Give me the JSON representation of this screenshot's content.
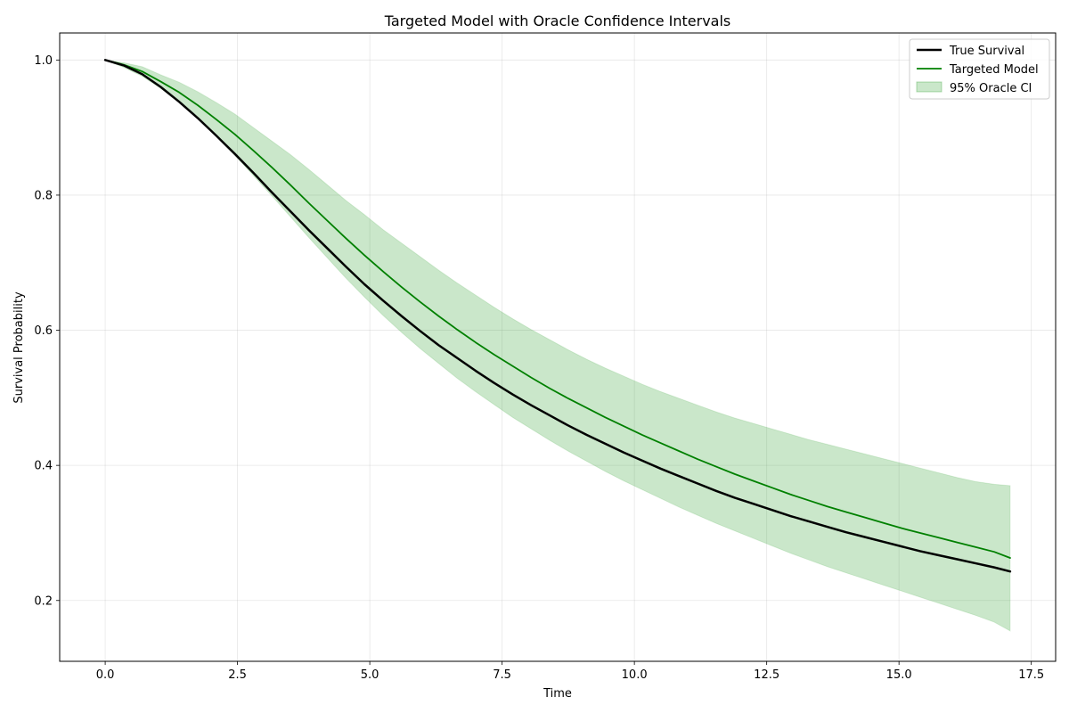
{
  "chart_data": {
    "type": "line",
    "title": "Targeted Model with Oracle Confidence Intervals",
    "xlabel": "Time",
    "ylabel": "Survival Probability",
    "xlim": [
      -0.86,
      17.96
    ],
    "ylim": [
      0.11,
      1.04
    ],
    "xticks": [
      0.0,
      2.5,
      5.0,
      7.5,
      10.0,
      12.5,
      15.0,
      17.5
    ],
    "xtick_labels": [
      "0.0",
      "2.5",
      "5.0",
      "7.5",
      "10.0",
      "12.5",
      "15.0",
      "17.5"
    ],
    "yticks": [
      0.2,
      0.4,
      0.6,
      0.8,
      1.0
    ],
    "ytick_labels": [
      "0.2",
      "0.4",
      "0.6",
      "0.8",
      "1.0"
    ],
    "grid": true,
    "legend_position": "top-right",
    "x": [
      0,
      0.35,
      0.7,
      1.05,
      1.4,
      1.75,
      2.1,
      2.45,
      2.8,
      3.15,
      3.5,
      3.85,
      4.2,
      4.55,
      4.9,
      5.25,
      5.6,
      5.95,
      6.3,
      6.65,
      7.0,
      7.35,
      7.7,
      8.05,
      8.4,
      8.75,
      9.1,
      9.45,
      9.8,
      10.15,
      10.5,
      10.85,
      11.2,
      11.55,
      11.9,
      12.25,
      12.6,
      12.95,
      13.3,
      13.65,
      14.0,
      14.35,
      14.7,
      15.05,
      15.4,
      15.75,
      16.1,
      16.45,
      16.8,
      17.1
    ],
    "series": [
      {
        "name": "True Survival",
        "color": "#000000",
        "line_width": 2.5,
        "values": [
          1.0,
          0.992,
          0.979,
          0.96,
          0.938,
          0.914,
          0.888,
          0.861,
          0.833,
          0.804,
          0.776,
          0.748,
          0.721,
          0.694,
          0.668,
          0.644,
          0.621,
          0.599,
          0.578,
          0.559,
          0.54,
          0.522,
          0.505,
          0.489,
          0.474,
          0.459,
          0.445,
          0.432,
          0.419,
          0.407,
          0.395,
          0.384,
          0.373,
          0.362,
          0.352,
          0.343,
          0.334,
          0.325,
          0.317,
          0.309,
          0.301,
          0.294,
          0.287,
          0.28,
          0.273,
          0.267,
          0.261,
          0.255,
          0.249,
          0.243
        ]
      },
      {
        "name": "Targeted Model",
        "color": "#008000",
        "line_width": 1.8,
        "values": [
          1.0,
          0.993,
          0.983,
          0.968,
          0.952,
          0.933,
          0.912,
          0.89,
          0.866,
          0.841,
          0.815,
          0.788,
          0.762,
          0.736,
          0.711,
          0.687,
          0.664,
          0.642,
          0.621,
          0.601,
          0.582,
          0.564,
          0.547,
          0.53,
          0.514,
          0.499,
          0.485,
          0.471,
          0.458,
          0.445,
          0.433,
          0.421,
          0.409,
          0.398,
          0.387,
          0.377,
          0.367,
          0.357,
          0.348,
          0.339,
          0.331,
          0.323,
          0.315,
          0.307,
          0.3,
          0.293,
          0.286,
          0.279,
          0.272,
          0.263
        ]
      }
    ],
    "band": {
      "name": "95% Oracle CI",
      "color": "#2ca02c",
      "opacity": 0.25,
      "lower": [
        1.0,
        0.989,
        0.976,
        0.958,
        0.937,
        0.913,
        0.887,
        0.859,
        0.829,
        0.799,
        0.768,
        0.737,
        0.707,
        0.677,
        0.649,
        0.622,
        0.597,
        0.573,
        0.551,
        0.529,
        0.509,
        0.49,
        0.471,
        0.454,
        0.437,
        0.421,
        0.406,
        0.391,
        0.377,
        0.364,
        0.351,
        0.338,
        0.326,
        0.314,
        0.303,
        0.292,
        0.281,
        0.27,
        0.26,
        0.25,
        0.241,
        0.232,
        0.223,
        0.214,
        0.205,
        0.196,
        0.187,
        0.178,
        0.168,
        0.155
      ],
      "upper": [
        1.0,
        0.996,
        0.99,
        0.978,
        0.967,
        0.953,
        0.937,
        0.92,
        0.9,
        0.88,
        0.86,
        0.838,
        0.815,
        0.792,
        0.771,
        0.749,
        0.729,
        0.709,
        0.689,
        0.67,
        0.652,
        0.634,
        0.617,
        0.601,
        0.586,
        0.571,
        0.557,
        0.544,
        0.532,
        0.52,
        0.509,
        0.499,
        0.489,
        0.479,
        0.47,
        0.462,
        0.454,
        0.446,
        0.438,
        0.431,
        0.424,
        0.417,
        0.41,
        0.403,
        0.396,
        0.389,
        0.382,
        0.376,
        0.372,
        0.37
      ]
    }
  }
}
